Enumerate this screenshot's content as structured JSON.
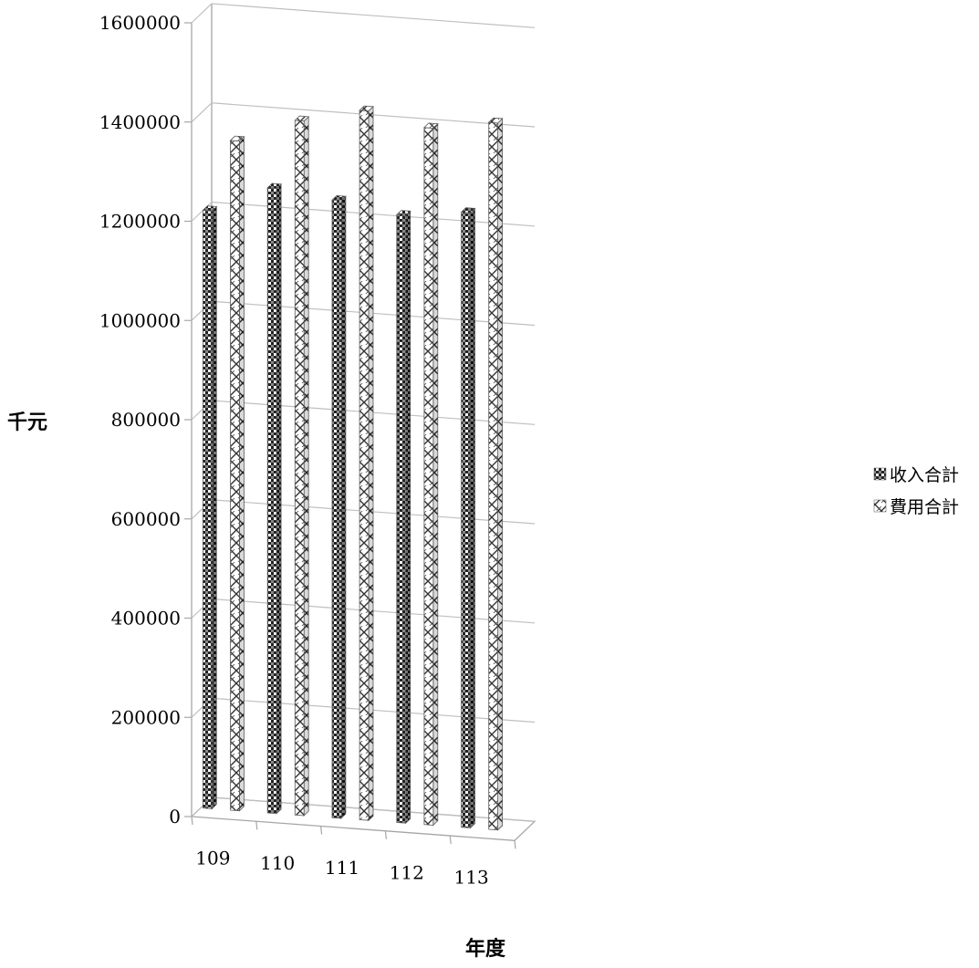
{
  "chart_data": {
    "type": "bar",
    "style": "3d-clustered-column",
    "categories": [
      "109",
      "110",
      "111",
      "112",
      "113"
    ],
    "series": [
      {
        "name": "收入合計",
        "values": [
          1205000,
          1260000,
          1245000,
          1225000,
          1240000
        ],
        "pattern": "dense-checker"
      },
      {
        "name": "費用合計",
        "values": [
          1350000,
          1400000,
          1430000,
          1405000,
          1425000
        ],
        "pattern": "lattice"
      }
    ],
    "ylim": [
      0,
      1600000
    ],
    "yticks": [
      0,
      200000,
      400000,
      600000,
      800000,
      1000000,
      1200000,
      1400000,
      1600000
    ],
    "xlabel": "年度",
    "ylabel": "千元",
    "legend_position": "right",
    "grid": true,
    "colors": {
      "grid": "#bfbfbf",
      "axis": "#a6a6a6",
      "edge": "#595959"
    }
  }
}
